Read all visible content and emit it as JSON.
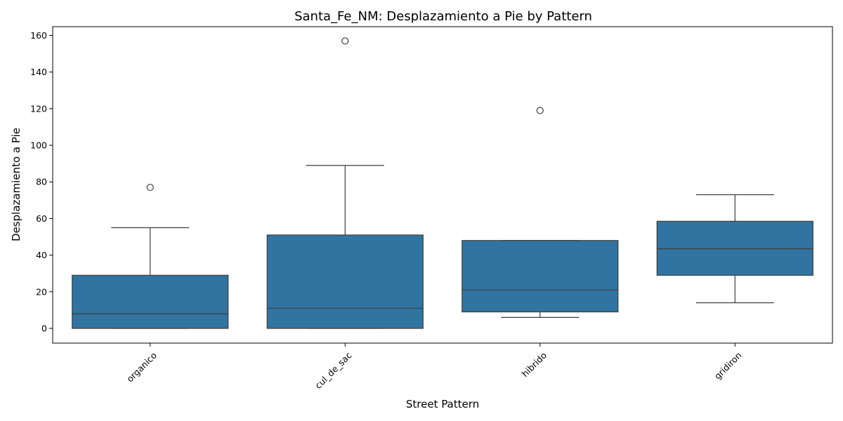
{
  "chart_data": {
    "type": "box",
    "title": "Santa_Fe_NM: Desplazamiento a Pie by Pattern",
    "xlabel": "Street Pattern",
    "ylabel": "Desplazamiento a Pie",
    "ylim": [
      -8,
      165
    ],
    "yticks": [
      0,
      20,
      40,
      60,
      80,
      100,
      120,
      140,
      160
    ],
    "categories": [
      "organico",
      "cul_de_sac",
      "hibrido",
      "gridiron"
    ],
    "boxes": [
      {
        "category": "organico",
        "whisker_low": 0,
        "q1": 0,
        "median": 8,
        "q3": 29,
        "whisker_high": 55,
        "outliers": [
          77
        ]
      },
      {
        "category": "cul_de_sac",
        "whisker_low": 0,
        "q1": 0,
        "median": 11,
        "q3": 51,
        "whisker_high": 89,
        "outliers": [
          157
        ]
      },
      {
        "category": "hibrido",
        "whisker_low": 6,
        "q1": 9,
        "median": 21,
        "q3": 48,
        "whisker_high": 48,
        "outliers": [
          119
        ]
      },
      {
        "category": "gridiron",
        "whisker_low": 14,
        "q1": 29,
        "median": 43.5,
        "q3": 58.5,
        "whisker_high": 73,
        "outliers": []
      }
    ],
    "box_color": "#3274a1",
    "line_color": "#3d3d3d",
    "grid": false,
    "legend": "none"
  }
}
